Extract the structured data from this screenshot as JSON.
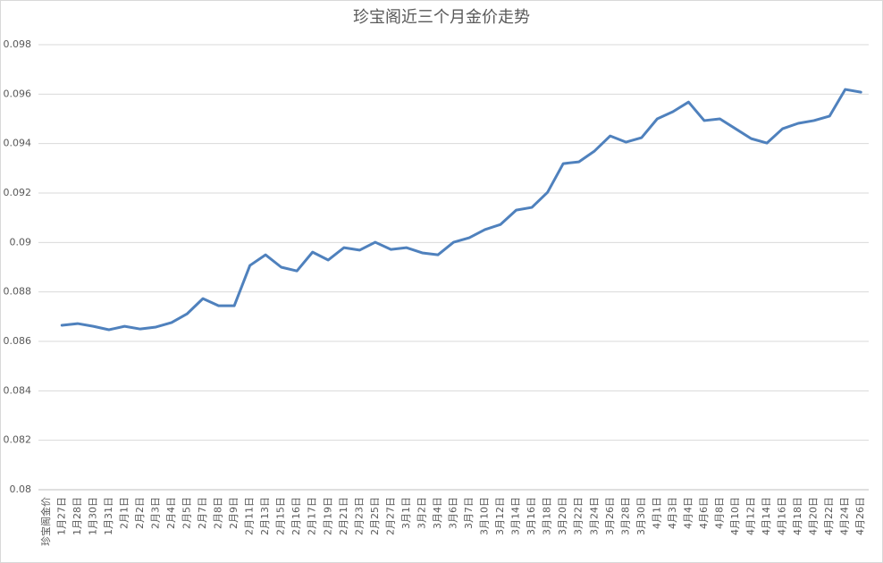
{
  "chart_data": {
    "type": "line",
    "title": "珍宝阁近三个月金价走势",
    "categories": [
      "珍宝阁金价",
      "1月27日",
      "1月28日",
      "1月30日",
      "1月31日",
      "2月1日",
      "2月2日",
      "2月3日",
      "2月4日",
      "2月5日",
      "2月7日",
      "2月8日",
      "2月9日",
      "2月11日",
      "2月13日",
      "2月15日",
      "2月16日",
      "2月17日",
      "2月19日",
      "2月21日",
      "2月23日",
      "2月25日",
      "2月27日",
      "3月1日",
      "3月2日",
      "3月4日",
      "3月6日",
      "3月7日",
      "3月10日",
      "3月12日",
      "3月14日",
      "3月16日",
      "3月18日",
      "3月20日",
      "3月22日",
      "3月24日",
      "3月26日",
      "3月28日",
      "3月30日",
      "4月1日",
      "4月3日",
      "4月4日",
      "4月6日",
      "4月8日",
      "4月10日",
      "4月12日",
      "4月14日",
      "4月16日",
      "4月18日",
      "4月20日",
      "4月22日",
      "4月24日",
      "4月26日"
    ],
    "values": [
      null,
      0.08665,
      0.08672,
      0.08661,
      0.08647,
      0.08661,
      0.0865,
      0.08658,
      0.08676,
      0.08712,
      0.08773,
      0.08744,
      0.08744,
      0.08907,
      0.0895,
      0.089,
      0.08885,
      0.08961,
      0.08929,
      0.08979,
      0.08969,
      0.09001,
      0.08972,
      0.08979,
      0.08958,
      0.0895,
      0.09001,
      0.09019,
      0.09052,
      0.09073,
      0.09131,
      0.09142,
      0.09203,
      0.09319,
      0.09326,
      0.0937,
      0.09431,
      0.09406,
      0.09424,
      0.095,
      0.09529,
      0.09568,
      0.09493,
      0.095,
      0.0946,
      0.0942,
      0.09402,
      0.0946,
      0.09482,
      0.09493,
      0.09511,
      0.09619,
      0.09608
    ],
    "color": "#4f81bd",
    "ylim": [
      0.08,
      0.098
    ],
    "yticks": [
      0.08,
      0.082,
      0.084,
      0.086,
      0.088,
      0.09,
      0.092,
      0.094,
      0.096,
      0.098
    ],
    "grid": true
  }
}
